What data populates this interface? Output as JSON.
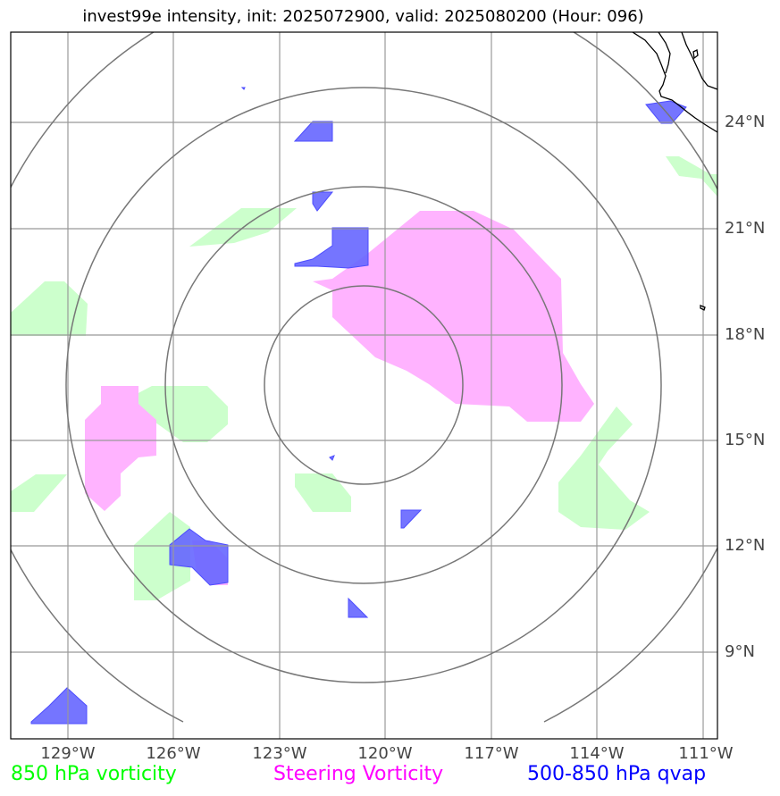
{
  "title": "invest99e intensity, init: 2025072900, valid: 2025080200 (Hour: 096)",
  "axes": {
    "lat_labels": [
      "24°N",
      "21°N",
      "18°N",
      "15°N",
      "12°N",
      "9°N"
    ],
    "lon_labels": [
      "129°W",
      "126°W",
      "123°W",
      "120°W",
      "117°W",
      "114°W",
      "111°W"
    ]
  },
  "legend": {
    "vorticity_850": {
      "label": "850 hPa vorticity",
      "color": "#00ff00"
    },
    "steering_vorticity": {
      "label": "Steering Vorticity",
      "color": "#ff00ff"
    },
    "qvap": {
      "label": "500-850 hPa qvap",
      "color": "#0000ff"
    }
  },
  "colors": {
    "vorticity_fill": "#ccffcc",
    "steering_fill": "#ffb3ff",
    "qvap_fill": "#6666ff",
    "grid": "#999999",
    "range_rings": "#777777",
    "coastline": "#000000"
  }
}
